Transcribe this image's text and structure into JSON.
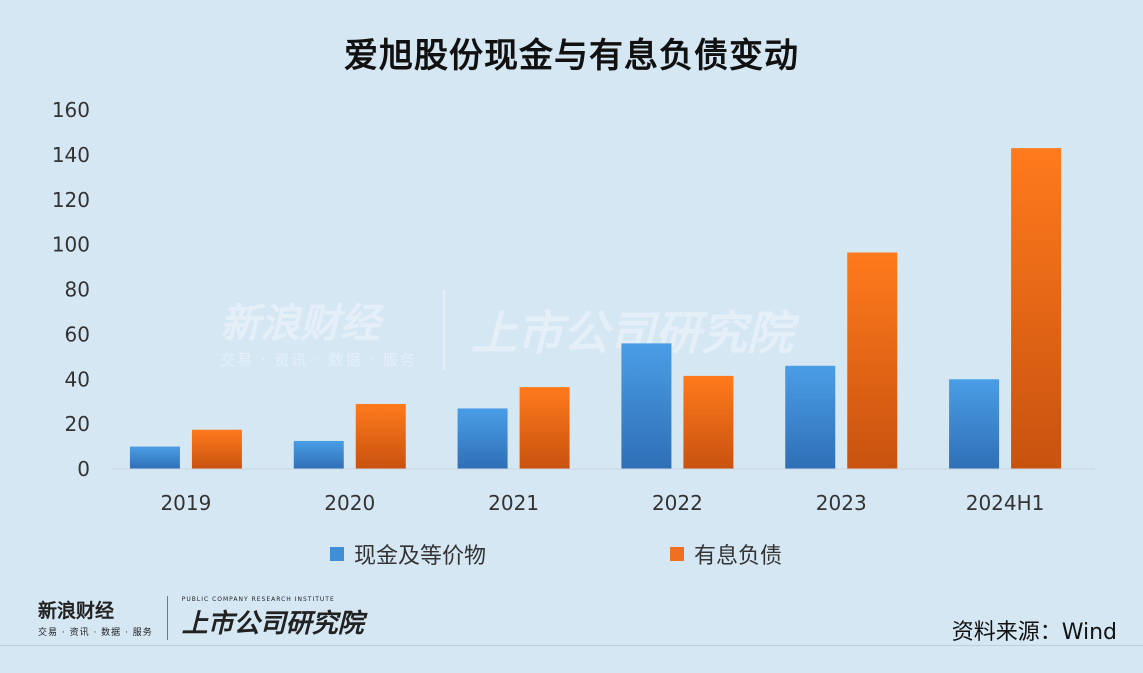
{
  "title": "爱旭股份现金与有息负债变动",
  "chart_data": {
    "type": "bar",
    "categories": [
      "2019",
      "2020",
      "2021",
      "2022",
      "2023",
      "2024H1"
    ],
    "series": [
      {
        "name": "现金及等价物",
        "values": [
          10,
          12.5,
          27,
          56,
          46,
          40
        ],
        "color": "#3f8fd8"
      },
      {
        "name": "有息负债",
        "values": [
          17.5,
          29,
          36.5,
          41.5,
          96.5,
          143
        ],
        "color": "#f07020"
      }
    ],
    "ylim": [
      0,
      160
    ],
    "yticks": [
      "0",
      "20",
      "40",
      "60",
      "80",
      "100",
      "120",
      "140",
      "160"
    ],
    "grid": false,
    "legend_position": "bottom"
  },
  "source": "资料来源：Wind",
  "branding": {
    "sina_name": "新浪财经",
    "sina_sub": "交易 · 资讯 · 数据 · 服务",
    "institute_name": "上市公司研究院",
    "institute_sub": "PUBLIC COMPANY RESEARCH INSTITUTE"
  }
}
